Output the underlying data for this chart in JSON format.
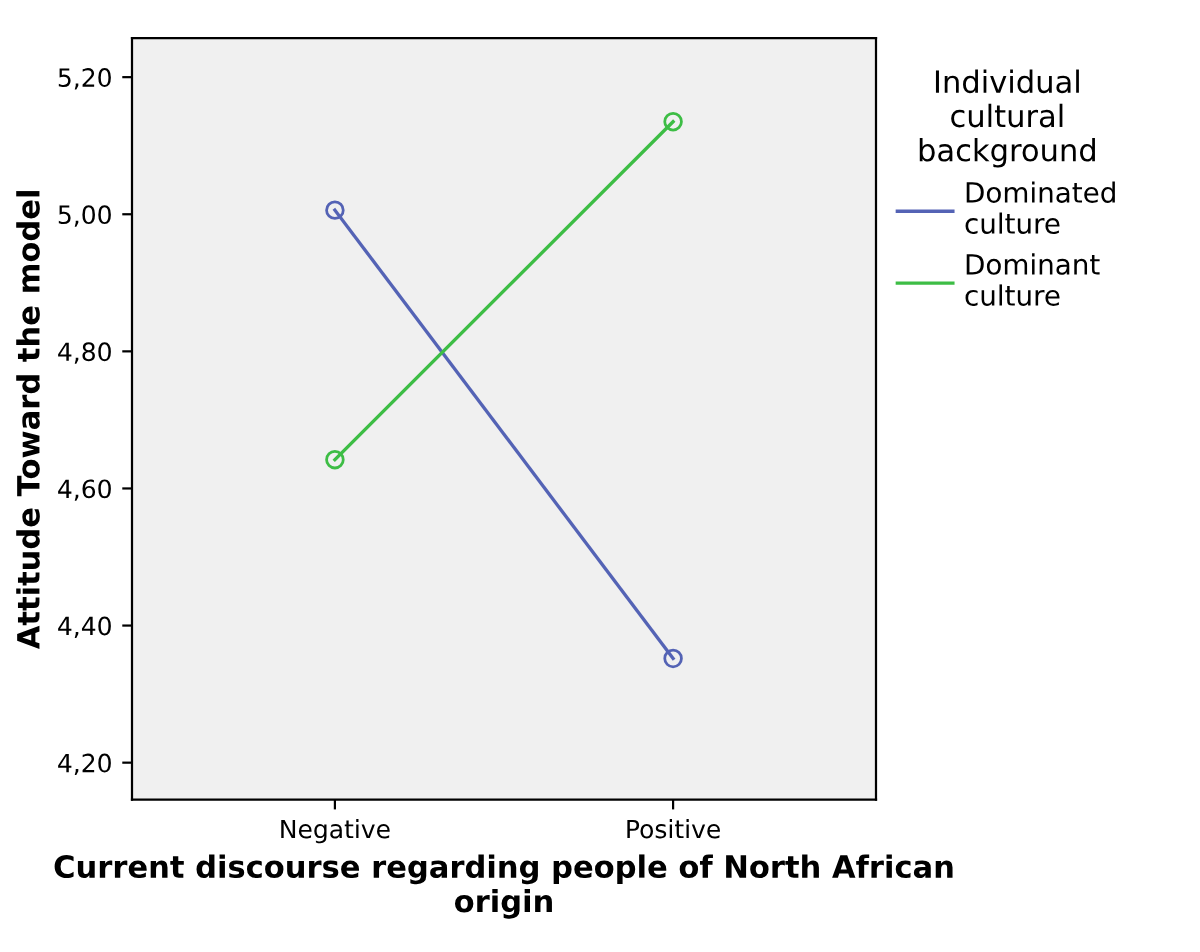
{
  "chart_data": {
    "type": "line",
    "xlabel": "Current discourse regarding people of North African origin",
    "ylabel": "Attitude Toward the model",
    "legend_title": "Individual cultural background",
    "categories": [
      "Negative",
      "Positive"
    ],
    "series": [
      {
        "name": "Dominated culture",
        "color": "#5463b5",
        "values": [
          5.006,
          4.352
        ]
      },
      {
        "name": "Dominant culture",
        "color": "#3dbd45",
        "values": [
          4.642,
          5.135
        ]
      }
    ],
    "ylim": [
      4.146,
      5.257
    ],
    "yticks": [
      {
        "value": 4.2,
        "label": "4,20"
      },
      {
        "value": 4.4,
        "label": "4,40"
      },
      {
        "value": 4.6,
        "label": "4,60"
      },
      {
        "value": 4.8,
        "label": "4,80"
      },
      {
        "value": 5.0,
        "label": "5,00"
      },
      {
        "value": 5.2,
        "label": "5,20"
      }
    ],
    "grid": false,
    "legend": "right",
    "marker": "circle",
    "line_style": "solid"
  }
}
